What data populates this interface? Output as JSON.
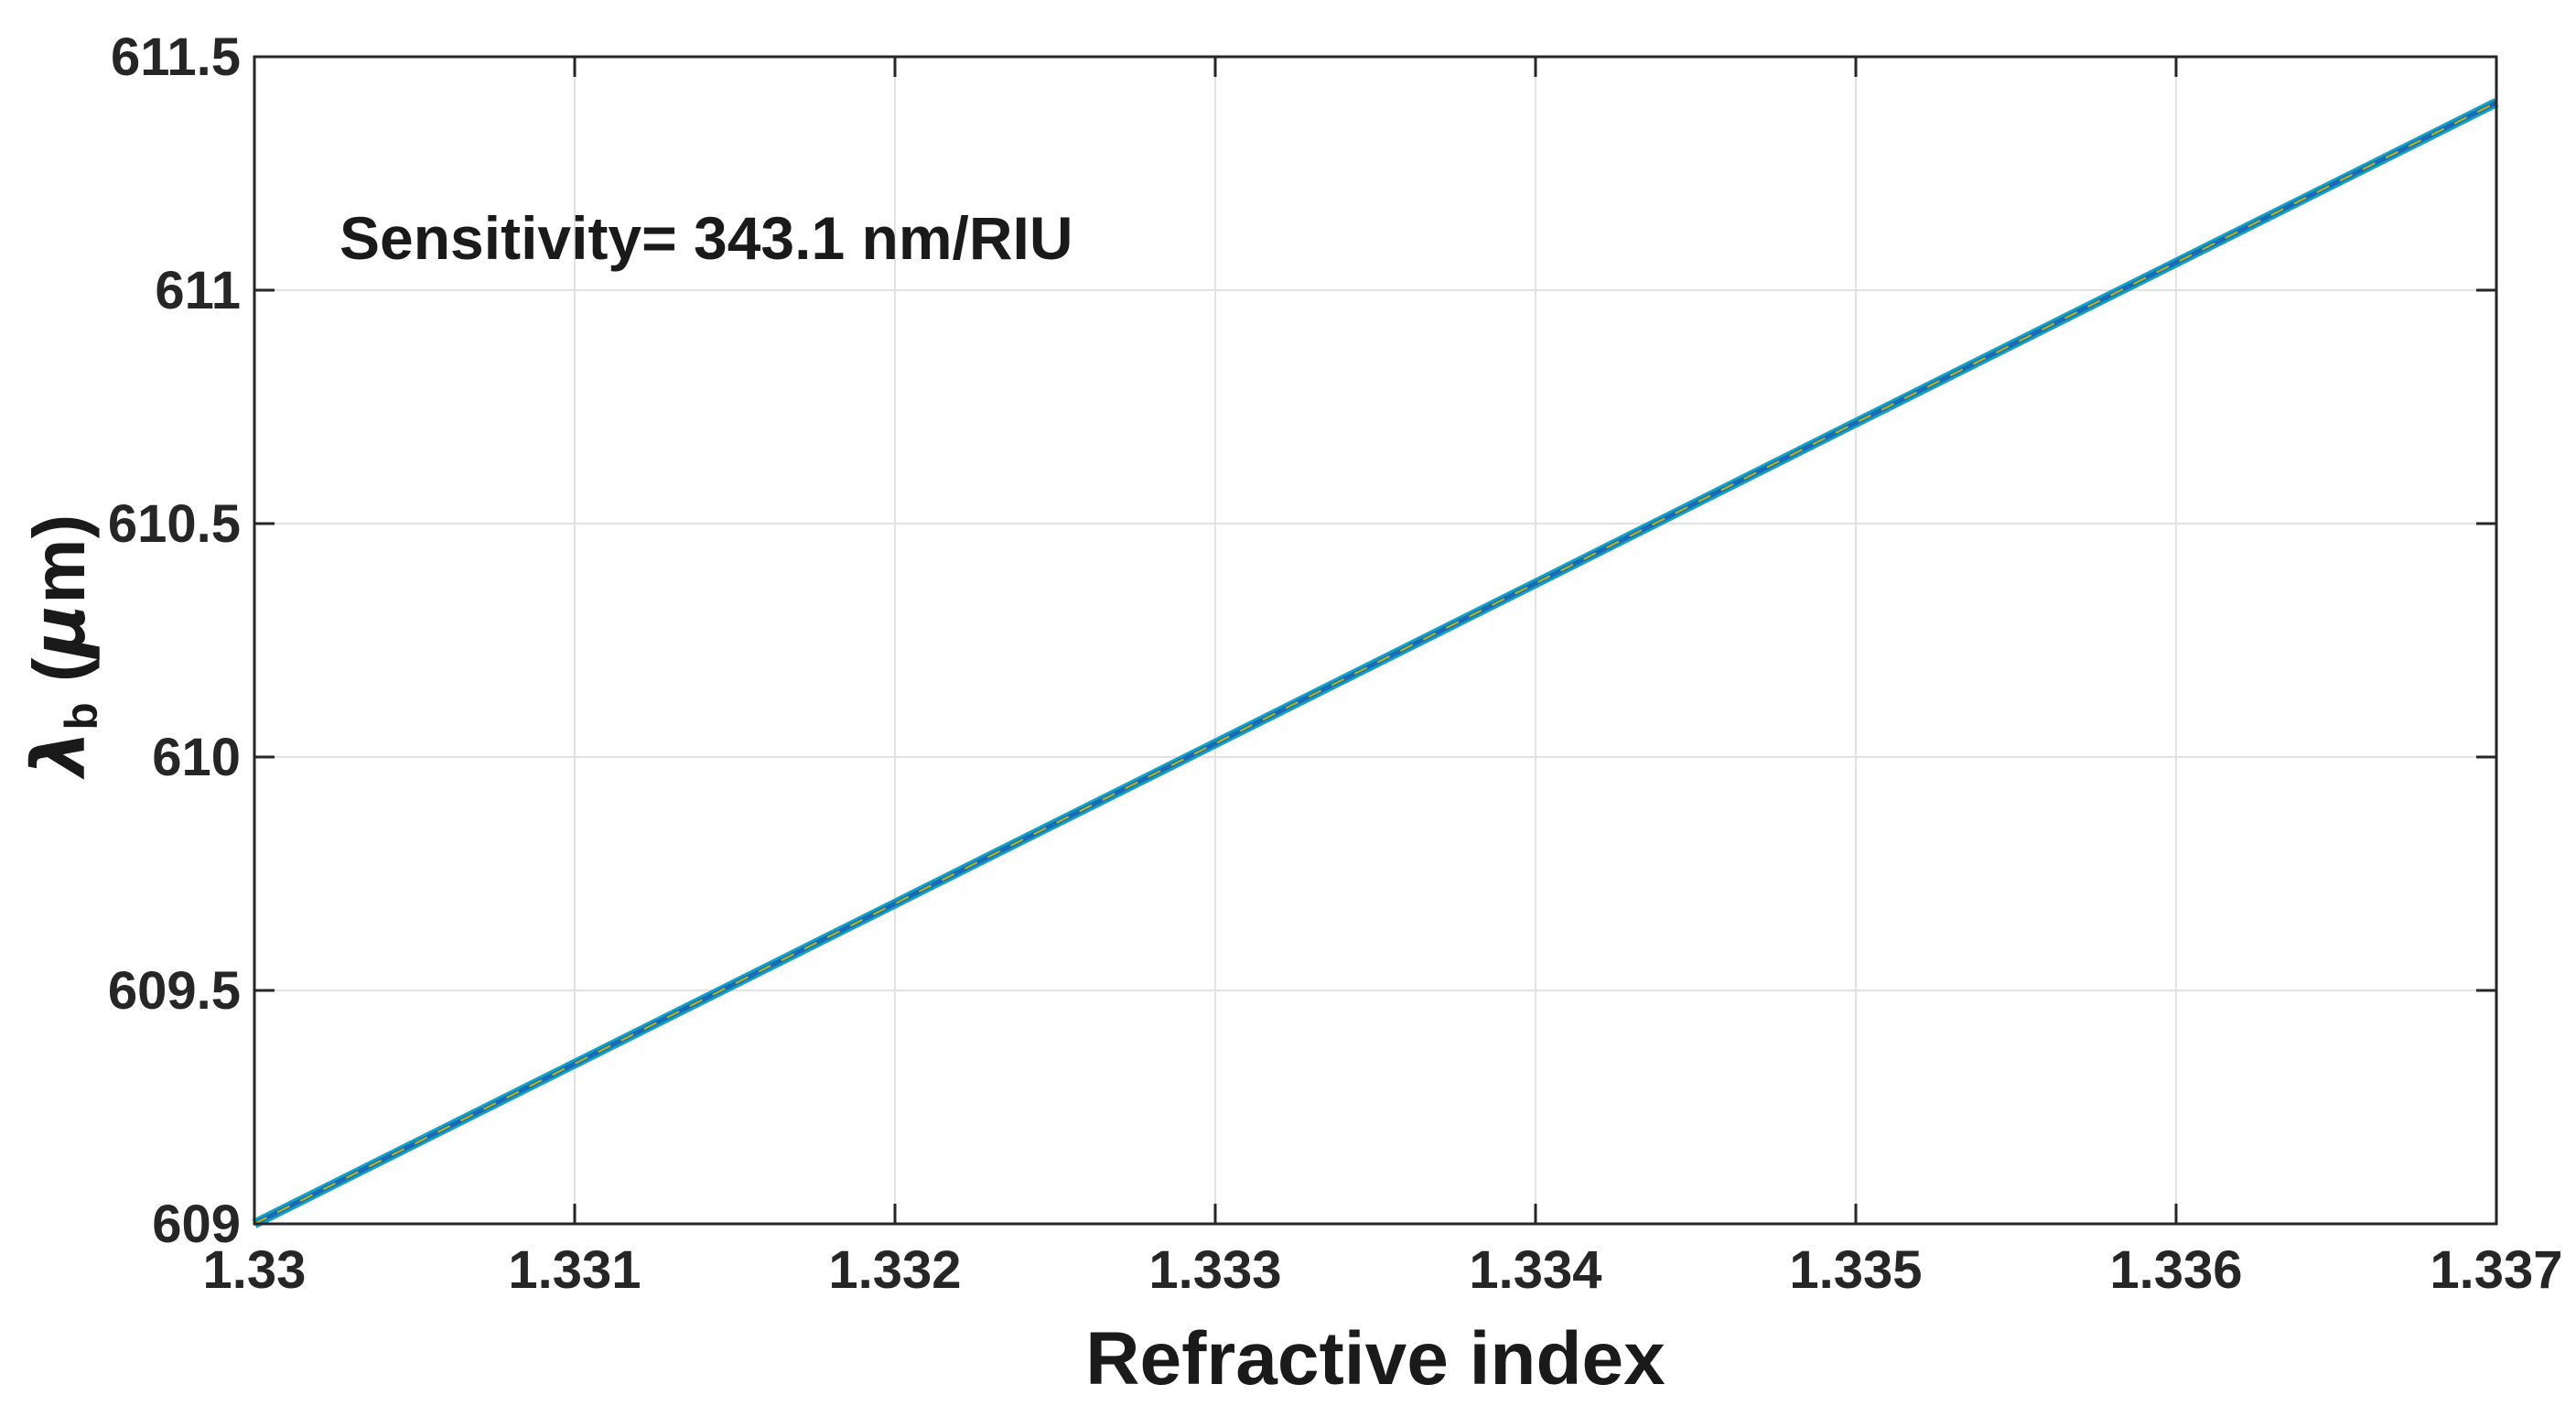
{
  "figure": {
    "background": "#ffffff",
    "annotation": "Sensitivity= 343.1 nm/RIU",
    "xlabel": "Refractive index",
    "ylabel_parts": {
      "lambda": "λ",
      "sub": "b",
      "space": " ",
      "open": "(",
      "mu": "µ",
      "unit": "m)"
    }
  },
  "chart_data": {
    "type": "line",
    "title": "",
    "xlabel": "Refractive index",
    "ylabel": "λ_b (µm)",
    "annotation": "Sensitivity= 343.1 nm/RIU",
    "x": [
      1.33,
      1.331,
      1.332,
      1.333,
      1.334,
      1.335,
      1.336,
      1.337
    ],
    "series": [
      {
        "name": "Bragg wavelength vs refractive index",
        "values": [
          609.0,
          609.343,
          609.686,
          610.029,
          610.372,
          610.716,
          611.059,
          611.402
        ]
      }
    ],
    "sensitivity_nm_per_RIU": 343.1,
    "xlim": [
      1.33,
      1.337
    ],
    "ylim": [
      609,
      611.5
    ],
    "xticks": [
      1.33,
      1.331,
      1.332,
      1.333,
      1.334,
      1.335,
      1.336,
      1.337
    ],
    "xtick_labels": [
      "1.33",
      "1.331",
      "1.332",
      "1.333",
      "1.334",
      "1.335",
      "1.336",
      "1.337"
    ],
    "yticks": [
      609,
      609.5,
      610,
      610.5,
      611,
      611.5
    ],
    "ytick_labels": [
      "609",
      "609.5",
      "610",
      "610.5",
      "611",
      "611.5"
    ],
    "grid": true,
    "legend": "none",
    "colors": {
      "line_outer": "#14a0c3",
      "line_inner": "#1b6ab5",
      "line_dash": "#aab428",
      "grid": "#e2e2e2",
      "axis": "#262626",
      "text": "#262626"
    }
  }
}
